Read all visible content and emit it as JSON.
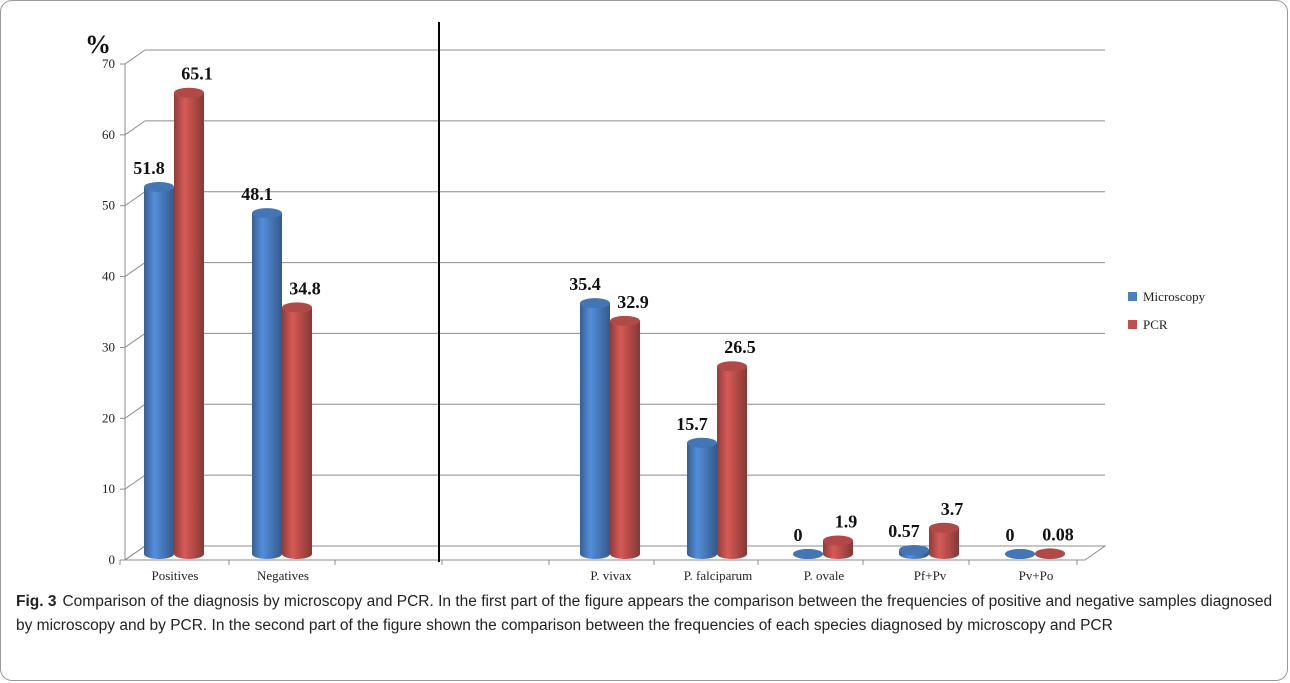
{
  "chart_data": {
    "type": "bar",
    "ylabel": "%",
    "ylim": [
      0,
      70
    ],
    "yticks": [
      0,
      10,
      20,
      30,
      40,
      50,
      60,
      70
    ],
    "grid": true,
    "legend_position": "right",
    "categories": [
      "Positives",
      "Negatives",
      "P. vivax",
      "P. falciparum",
      "P. ovale",
      "Pf+Pv",
      "Pv+Po"
    ],
    "series": [
      {
        "name": "Microscopy",
        "color": "#4a7fc4",
        "values": [
          51.8,
          48.1,
          35.4,
          15.7,
          0,
          0.57,
          0
        ],
        "labels": [
          "51.8",
          "48.1",
          "35.4",
          "15.7",
          "0",
          "0.57",
          "0"
        ]
      },
      {
        "name": "PCR",
        "color": "#c0504d",
        "values": [
          65.1,
          34.8,
          32.9,
          26.5,
          1.9,
          3.7,
          0.08
        ],
        "labels": [
          "65.1",
          "34.8",
          "32.9",
          "26.5",
          "1.9",
          "3.7",
          "0.08"
        ]
      }
    ]
  },
  "caption": {
    "label": "Fig. 3",
    "text": "Comparison of the diagnosis by microscopy and PCR. In the first part of the figure appears the comparison between the frequencies of positive and negative samples diagnosed by microscopy and by PCR. In the second part of the figure shown the comparison between the frequencies of each species diagnosed by microscopy and PCR"
  }
}
